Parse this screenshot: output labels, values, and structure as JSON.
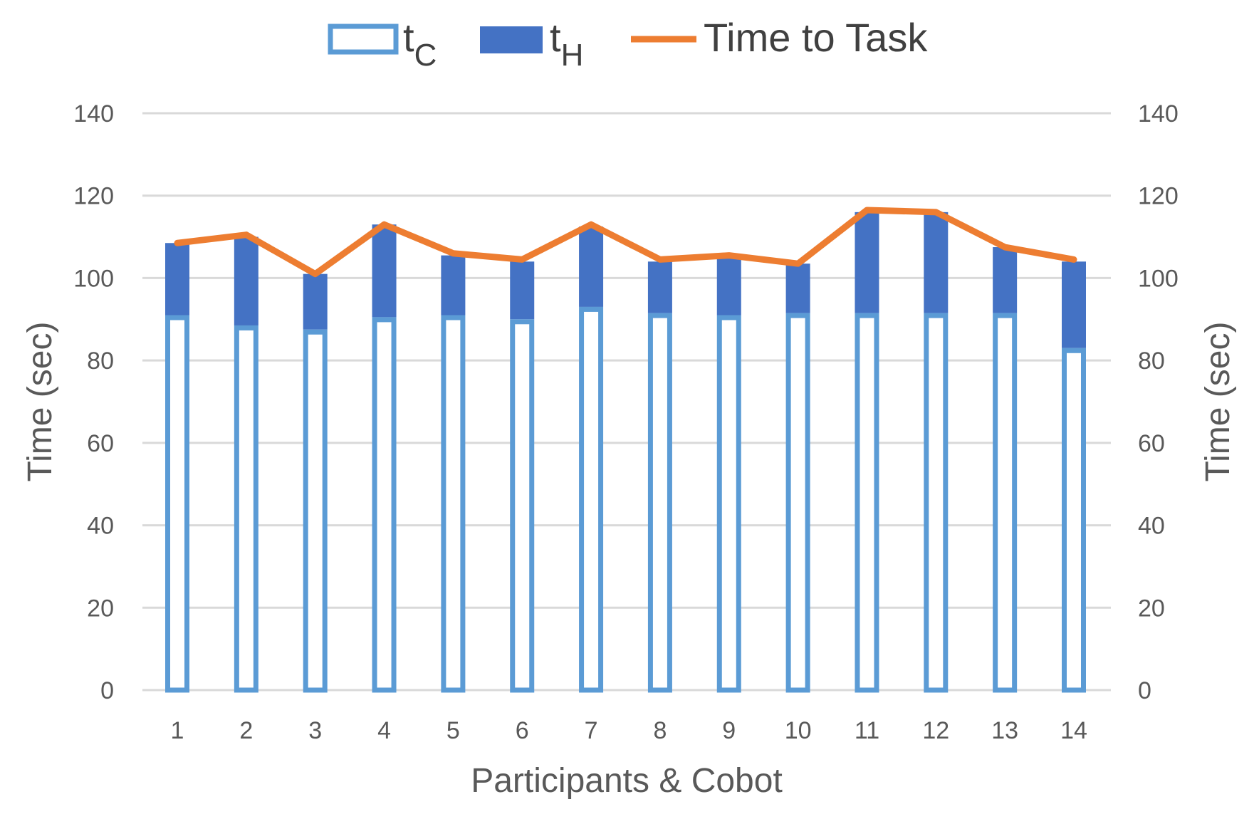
{
  "chart_data": {
    "type": "bar",
    "categories": [
      "1",
      "2",
      "3",
      "4",
      "5",
      "6",
      "7",
      "8",
      "9",
      "10",
      "11",
      "12",
      "13",
      "14"
    ],
    "series": [
      {
        "name": "tC",
        "label_main": "t",
        "label_sub": "C",
        "kind": "bar-outline",
        "color": "#5b9bd5",
        "values": [
          91,
          88.5,
          87.5,
          90.5,
          91,
          90,
          93,
          91.5,
          91,
          91.5,
          91.5,
          91.5,
          91.5,
          83
        ]
      },
      {
        "name": "tH",
        "label_main": "t",
        "label_sub": "H",
        "kind": "bar-stacked",
        "color": "#4472c4",
        "values": [
          17.5,
          21.5,
          13.5,
          22.5,
          14.5,
          14,
          19.5,
          12.5,
          14.5,
          12,
          24.5,
          24.5,
          16,
          21
        ]
      },
      {
        "name": "Time to Task",
        "kind": "line",
        "color": "#ed7d31",
        "values": [
          108.5,
          110.5,
          101,
          113,
          106,
          104.5,
          113,
          104.5,
          105.5,
          103.5,
          116.5,
          116,
          107.5,
          104.5
        ]
      }
    ],
    "xlabel": "Participants & Cobot",
    "ylabel": "Time (sec)",
    "y2label": "Time (sec)",
    "ylim": [
      0,
      140
    ],
    "yticks": [
      "0",
      "20",
      "40",
      "60",
      "80",
      "100",
      "120",
      "140"
    ],
    "grid": true,
    "legend": "top-center"
  }
}
